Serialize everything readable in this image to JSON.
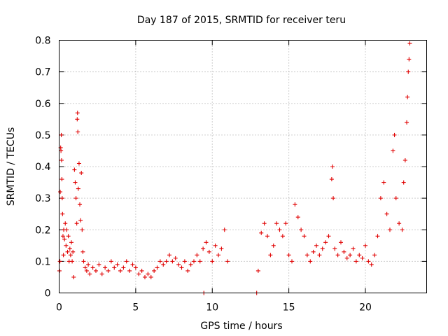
{
  "chart_data": {
    "type": "scatter",
    "title": "Day 187 of 2015, SRMTID for receiver teru",
    "xlabel": "GPS time / hours",
    "ylabel": "SRMTID / TECUs",
    "xlim": [
      0,
      24
    ],
    "ylim": [
      0,
      0.8
    ],
    "xticks": [
      0,
      5,
      10,
      15,
      20
    ],
    "xtick_labels": [
      "0",
      "5",
      "10",
      "15",
      "20"
    ],
    "yticks": [
      0,
      0.1,
      0.2,
      0.3,
      0.4,
      0.5,
      0.6,
      0.7,
      0.8
    ],
    "ytick_labels": [
      "0",
      "0.1",
      "0.2",
      "0.3",
      "0.4",
      "0.5",
      "0.6",
      "0.7",
      "0.8"
    ],
    "grid": true,
    "marker": "plus",
    "color": "#e00000",
    "series": [
      {
        "name": "SRMTID",
        "points": [
          [
            0.02,
            0.07
          ],
          [
            0.05,
            0.1
          ],
          [
            0.07,
            0.32
          ],
          [
            0.1,
            0.46
          ],
          [
            0.12,
            0.45
          ],
          [
            0.14,
            0.5
          ],
          [
            0.16,
            0.42
          ],
          [
            0.18,
            0.36
          ],
          [
            0.2,
            0.3
          ],
          [
            0.22,
            0.25
          ],
          [
            0.25,
            0.18
          ],
          [
            0.28,
            0.12
          ],
          [
            0.3,
            0.2
          ],
          [
            0.35,
            0.17
          ],
          [
            0.4,
            0.22
          ],
          [
            0.45,
            0.15
          ],
          [
            0.5,
            0.2
          ],
          [
            0.55,
            0.13
          ],
          [
            0.6,
            0.18
          ],
          [
            0.65,
            0.1
          ],
          [
            0.7,
            0.14
          ],
          [
            0.75,
            0.12
          ],
          [
            0.8,
            0.16
          ],
          [
            0.85,
            0.1
          ],
          [
            0.9,
            0.13
          ],
          [
            0.95,
            0.05
          ],
          [
            1.0,
            0.39
          ],
          [
            1.05,
            0.35
          ],
          [
            1.1,
            0.3
          ],
          [
            1.15,
            0.22
          ],
          [
            1.18,
            0.55
          ],
          [
            1.2,
            0.57
          ],
          [
            1.22,
            0.51
          ],
          [
            1.25,
            0.33
          ],
          [
            1.3,
            0.41
          ],
          [
            1.35,
            0.28
          ],
          [
            1.4,
            0.23
          ],
          [
            1.45,
            0.38
          ],
          [
            1.5,
            0.2
          ],
          [
            1.55,
            0.13
          ],
          [
            1.6,
            0.1
          ],
          [
            1.7,
            0.08
          ],
          [
            1.8,
            0.07
          ],
          [
            1.9,
            0.09
          ],
          [
            2.0,
            0.06
          ],
          [
            2.2,
            0.08
          ],
          [
            2.4,
            0.07
          ],
          [
            2.6,
            0.09
          ],
          [
            2.8,
            0.06
          ],
          [
            3.0,
            0.08
          ],
          [
            3.2,
            0.07
          ],
          [
            3.4,
            0.1
          ],
          [
            3.6,
            0.08
          ],
          [
            3.8,
            0.09
          ],
          [
            4.0,
            0.07
          ],
          [
            4.2,
            0.08
          ],
          [
            4.4,
            0.1
          ],
          [
            4.6,
            0.07
          ],
          [
            4.8,
            0.09
          ],
          [
            5.0,
            0.08
          ],
          [
            5.2,
            0.06
          ],
          [
            5.4,
            0.07
          ],
          [
            5.6,
            0.05
          ],
          [
            5.8,
            0.06
          ],
          [
            6.0,
            0.05
          ],
          [
            6.2,
            0.07
          ],
          [
            6.4,
            0.08
          ],
          [
            6.6,
            0.1
          ],
          [
            6.8,
            0.09
          ],
          [
            7.0,
            0.1
          ],
          [
            7.2,
            0.12
          ],
          [
            7.4,
            0.1
          ],
          [
            7.6,
            0.11
          ],
          [
            7.8,
            0.09
          ],
          [
            8.0,
            0.08
          ],
          [
            8.2,
            0.1
          ],
          [
            8.4,
            0.07
          ],
          [
            8.6,
            0.09
          ],
          [
            8.8,
            0.1
          ],
          [
            9.0,
            0.12
          ],
          [
            9.2,
            0.1
          ],
          [
            9.4,
            0.14
          ],
          [
            9.6,
            0.16
          ],
          [
            9.8,
            0.13
          ],
          [
            10.0,
            0.1
          ],
          [
            10.2,
            0.15
          ],
          [
            10.4,
            0.12
          ],
          [
            10.6,
            0.14
          ],
          [
            10.8,
            0.2
          ],
          [
            11.0,
            0.1
          ],
          [
            9.45,
            0.0
          ],
          [
            12.9,
            0.0
          ],
          [
            13.0,
            0.07
          ],
          [
            13.2,
            0.19
          ],
          [
            13.4,
            0.22
          ],
          [
            13.6,
            0.18
          ],
          [
            13.8,
            0.12
          ],
          [
            14.0,
            0.15
          ],
          [
            14.2,
            0.22
          ],
          [
            14.4,
            0.2
          ],
          [
            14.6,
            0.18
          ],
          [
            14.8,
            0.22
          ],
          [
            15.0,
            0.12
          ],
          [
            15.2,
            0.1
          ],
          [
            15.4,
            0.28
          ],
          [
            15.6,
            0.24
          ],
          [
            15.8,
            0.2
          ],
          [
            16.0,
            0.18
          ],
          [
            16.2,
            0.12
          ],
          [
            16.4,
            0.1
          ],
          [
            16.6,
            0.13
          ],
          [
            16.8,
            0.15
          ],
          [
            17.0,
            0.12
          ],
          [
            17.2,
            0.14
          ],
          [
            17.4,
            0.16
          ],
          [
            17.6,
            0.18
          ],
          [
            17.8,
            0.36
          ],
          [
            17.85,
            0.4
          ],
          [
            17.9,
            0.3
          ],
          [
            18.0,
            0.14
          ],
          [
            18.2,
            0.12
          ],
          [
            18.4,
            0.16
          ],
          [
            18.6,
            0.13
          ],
          [
            18.8,
            0.11
          ],
          [
            19.0,
            0.12
          ],
          [
            19.2,
            0.14
          ],
          [
            19.4,
            0.1
          ],
          [
            19.6,
            0.12
          ],
          [
            19.8,
            0.11
          ],
          [
            20.0,
            0.15
          ],
          [
            20.2,
            0.1
          ],
          [
            20.4,
            0.09
          ],
          [
            20.6,
            0.12
          ],
          [
            20.8,
            0.18
          ],
          [
            21.0,
            0.3
          ],
          [
            21.2,
            0.35
          ],
          [
            21.4,
            0.25
          ],
          [
            21.6,
            0.2
          ],
          [
            21.8,
            0.45
          ],
          [
            21.9,
            0.5
          ],
          [
            22.0,
            0.3
          ],
          [
            22.2,
            0.22
          ],
          [
            22.4,
            0.2
          ],
          [
            22.5,
            0.35
          ],
          [
            22.6,
            0.42
          ],
          [
            22.7,
            0.54
          ],
          [
            22.75,
            0.62
          ],
          [
            22.8,
            0.7
          ],
          [
            22.85,
            0.74
          ],
          [
            22.9,
            0.79
          ]
        ]
      }
    ]
  }
}
